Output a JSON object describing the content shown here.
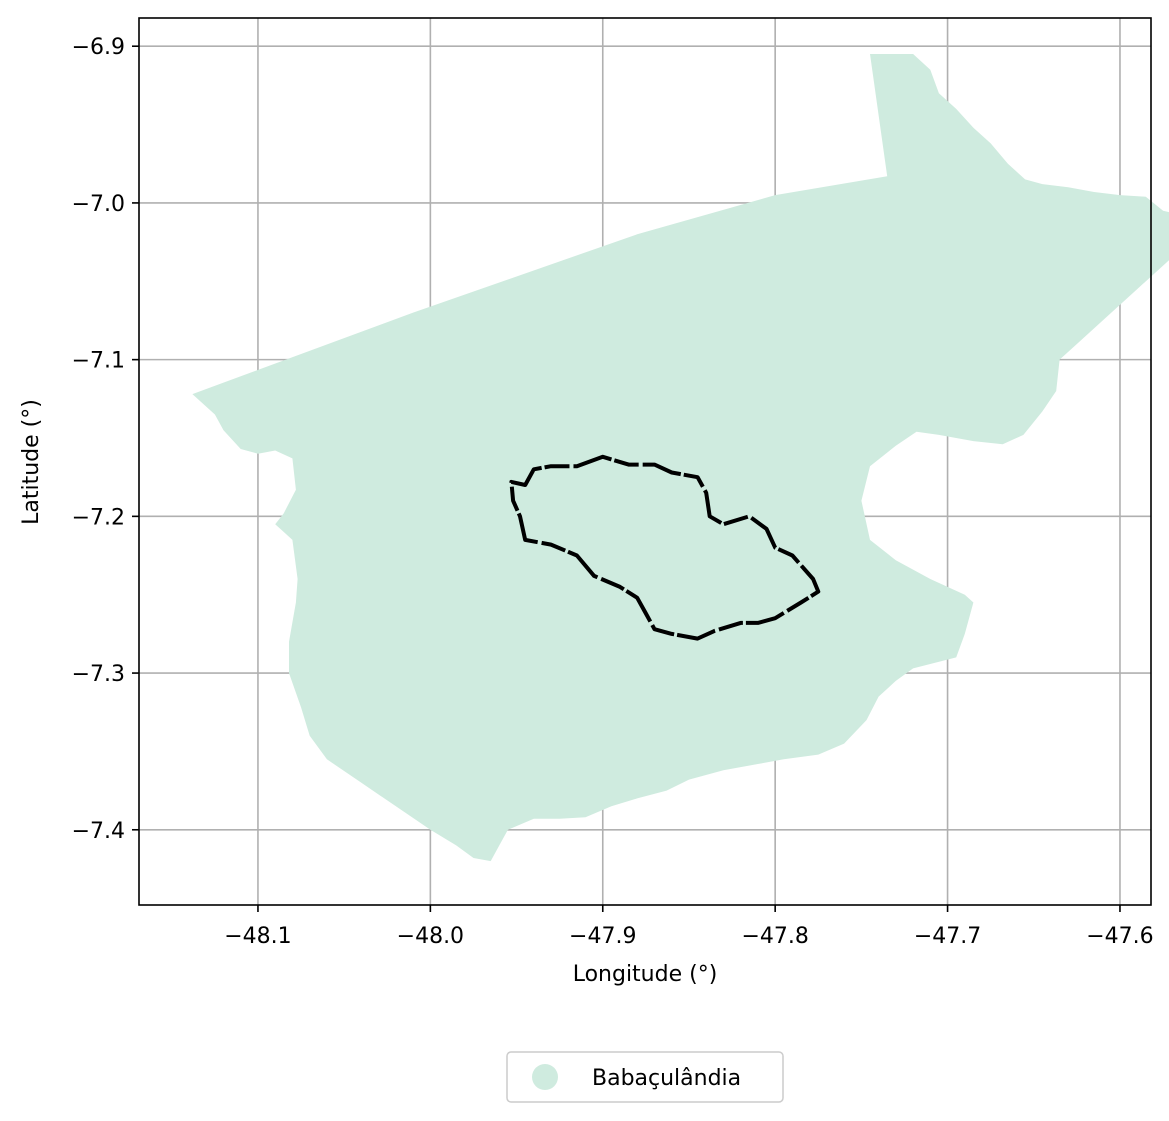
{
  "chart_data": {
    "type": "map",
    "xlabel": "Longitude (°)",
    "ylabel": "Latitude (°)",
    "xlim": [
      -48.169,
      -47.582
    ],
    "ylim": [
      -7.448,
      -6.882
    ],
    "xticks": [
      -48.1,
      -48.0,
      -47.9,
      -47.8,
      -47.7,
      -47.6
    ],
    "yticks": [
      -6.9,
      -7.0,
      -7.1,
      -7.2,
      -7.3,
      -7.4
    ],
    "grid": true,
    "legend": {
      "placement": "bottom-center",
      "entries": [
        {
          "label": "Babaçulândia",
          "color": "#cfebdf"
        }
      ]
    },
    "region": {
      "name": "Babaçulândia",
      "color": "#cfebdf",
      "polygon": [
        [
          -47.745,
          -6.905
        ],
        [
          -47.735,
          -6.905
        ],
        [
          -47.72,
          -6.905
        ],
        [
          -47.71,
          -6.915
        ],
        [
          -47.705,
          -6.93
        ],
        [
          -47.695,
          -6.94
        ],
        [
          -47.685,
          -6.952
        ],
        [
          -47.675,
          -6.962
        ],
        [
          -47.665,
          -6.975
        ],
        [
          -47.655,
          -6.985
        ],
        [
          -47.645,
          -6.988
        ],
        [
          -47.63,
          -6.99
        ],
        [
          -47.615,
          -6.993
        ],
        [
          -47.6,
          -6.995
        ],
        [
          -47.585,
          -6.996
        ],
        [
          -47.575,
          -7.005
        ],
        [
          -47.555,
          -7.01
        ],
        [
          -47.57,
          -7.035
        ],
        [
          -47.59,
          -7.055
        ],
        [
          -47.61,
          -7.075
        ],
        [
          -47.625,
          -7.09
        ],
        [
          -47.635,
          -7.1
        ],
        [
          -47.637,
          -7.12
        ],
        [
          -47.645,
          -7.133
        ],
        [
          -47.656,
          -7.148
        ],
        [
          -47.668,
          -7.154
        ],
        [
          -47.685,
          -7.152
        ],
        [
          -47.705,
          -7.148
        ],
        [
          -47.718,
          -7.146
        ],
        [
          -47.73,
          -7.155
        ],
        [
          -47.745,
          -7.168
        ],
        [
          -47.75,
          -7.19
        ],
        [
          -47.745,
          -7.215
        ],
        [
          -47.73,
          -7.228
        ],
        [
          -47.71,
          -7.24
        ],
        [
          -47.69,
          -7.25
        ],
        [
          -47.685,
          -7.255
        ],
        [
          -47.69,
          -7.275
        ],
        [
          -47.695,
          -7.29
        ],
        [
          -47.72,
          -7.297
        ],
        [
          -47.73,
          -7.305
        ],
        [
          -47.74,
          -7.315
        ],
        [
          -47.747,
          -7.33
        ],
        [
          -47.76,
          -7.345
        ],
        [
          -47.775,
          -7.352
        ],
        [
          -47.795,
          -7.355
        ],
        [
          -47.81,
          -7.358
        ],
        [
          -47.83,
          -7.362
        ],
        [
          -47.85,
          -7.368
        ],
        [
          -47.863,
          -7.375
        ],
        [
          -47.88,
          -7.38
        ],
        [
          -47.895,
          -7.385
        ],
        [
          -47.91,
          -7.392
        ],
        [
          -47.925,
          -7.393
        ],
        [
          -47.94,
          -7.393
        ],
        [
          -47.955,
          -7.4
        ],
        [
          -47.96,
          -7.41
        ],
        [
          -47.965,
          -7.42
        ],
        [
          -47.975,
          -7.418
        ],
        [
          -47.985,
          -7.41
        ],
        [
          -48.0,
          -7.4
        ],
        [
          -48.02,
          -7.385
        ],
        [
          -48.04,
          -7.37
        ],
        [
          -48.06,
          -7.355
        ],
        [
          -48.07,
          -7.34
        ],
        [
          -48.075,
          -7.322
        ],
        [
          -48.082,
          -7.3
        ],
        [
          -48.082,
          -7.28
        ],
        [
          -48.078,
          -7.255
        ],
        [
          -48.077,
          -7.24
        ],
        [
          -48.08,
          -7.215
        ],
        [
          -48.085,
          -7.21
        ],
        [
          -48.09,
          -7.205
        ],
        [
          -48.085,
          -7.198
        ],
        [
          -48.078,
          -7.183
        ],
        [
          -48.08,
          -7.163
        ],
        [
          -48.09,
          -7.158
        ],
        [
          -48.1,
          -7.16
        ],
        [
          -48.11,
          -7.157
        ],
        [
          -48.12,
          -7.145
        ],
        [
          -48.125,
          -7.135
        ],
        [
          -48.138,
          -7.122
        ],
        [
          -48.01,
          -7.07
        ],
        [
          -47.88,
          -7.02
        ],
        [
          -47.8,
          -6.995
        ],
        [
          -47.735,
          -6.983
        ]
      ]
    },
    "outline": {
      "color": "#000000",
      "polyline": [
        [
          -47.953,
          -7.178
        ],
        [
          -47.945,
          -7.18
        ],
        [
          -47.94,
          -7.17
        ],
        [
          -47.93,
          -7.168
        ],
        [
          -47.915,
          -7.168
        ],
        [
          -47.9,
          -7.162
        ],
        [
          -47.885,
          -7.167
        ],
        [
          -47.87,
          -7.167
        ],
        [
          -47.86,
          -7.172
        ],
        [
          -47.845,
          -7.175
        ],
        [
          -47.84,
          -7.185
        ],
        [
          -47.838,
          -7.2
        ],
        [
          -47.83,
          -7.205
        ],
        [
          -47.815,
          -7.2
        ],
        [
          -47.805,
          -7.208
        ],
        [
          -47.8,
          -7.22
        ],
        [
          -47.79,
          -7.225
        ],
        [
          -47.778,
          -7.24
        ],
        [
          -47.775,
          -7.248
        ],
        [
          -47.785,
          -7.255
        ],
        [
          -47.8,
          -7.265
        ],
        [
          -47.81,
          -7.268
        ],
        [
          -47.82,
          -7.268
        ],
        [
          -47.835,
          -7.273
        ],
        [
          -47.845,
          -7.278
        ],
        [
          -47.86,
          -7.275
        ],
        [
          -47.87,
          -7.272
        ],
        [
          -47.875,
          -7.262
        ],
        [
          -47.88,
          -7.252
        ],
        [
          -47.89,
          -7.245
        ],
        [
          -47.905,
          -7.238
        ],
        [
          -47.915,
          -7.225
        ],
        [
          -47.93,
          -7.218
        ],
        [
          -47.945,
          -7.215
        ],
        [
          -47.948,
          -7.2
        ],
        [
          -47.952,
          -7.19
        ],
        [
          -47.953,
          -7.178
        ]
      ]
    }
  }
}
